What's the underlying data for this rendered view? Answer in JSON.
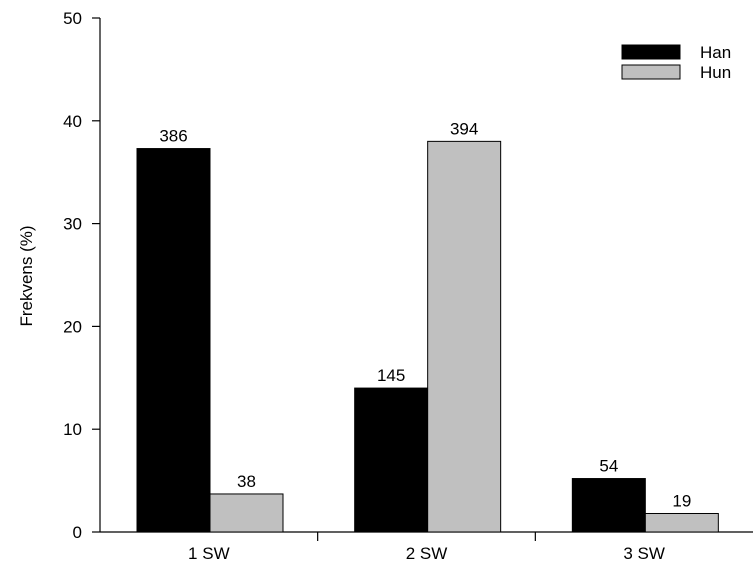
{
  "chart_data": {
    "type": "bar",
    "title": "",
    "xlabel": "",
    "ylabel": "Frekvens (%)",
    "categories": [
      "1 SW",
      "2 SW",
      "3 SW"
    ],
    "series": [
      {
        "name": "Han",
        "color": "#000000",
        "values": [
          37.3,
          14.0,
          5.2
        ],
        "labels": [
          "386",
          "145",
          "54"
        ]
      },
      {
        "name": "Hun",
        "color": "#c0c0c0",
        "values": [
          3.7,
          38.0,
          1.8
        ],
        "labels": [
          "38",
          "394",
          "19"
        ]
      }
    ],
    "ylim": [
      0,
      50
    ],
    "yticks": [
      0,
      10,
      20,
      30,
      40,
      50
    ],
    "grid": false,
    "legend": "top-right"
  }
}
